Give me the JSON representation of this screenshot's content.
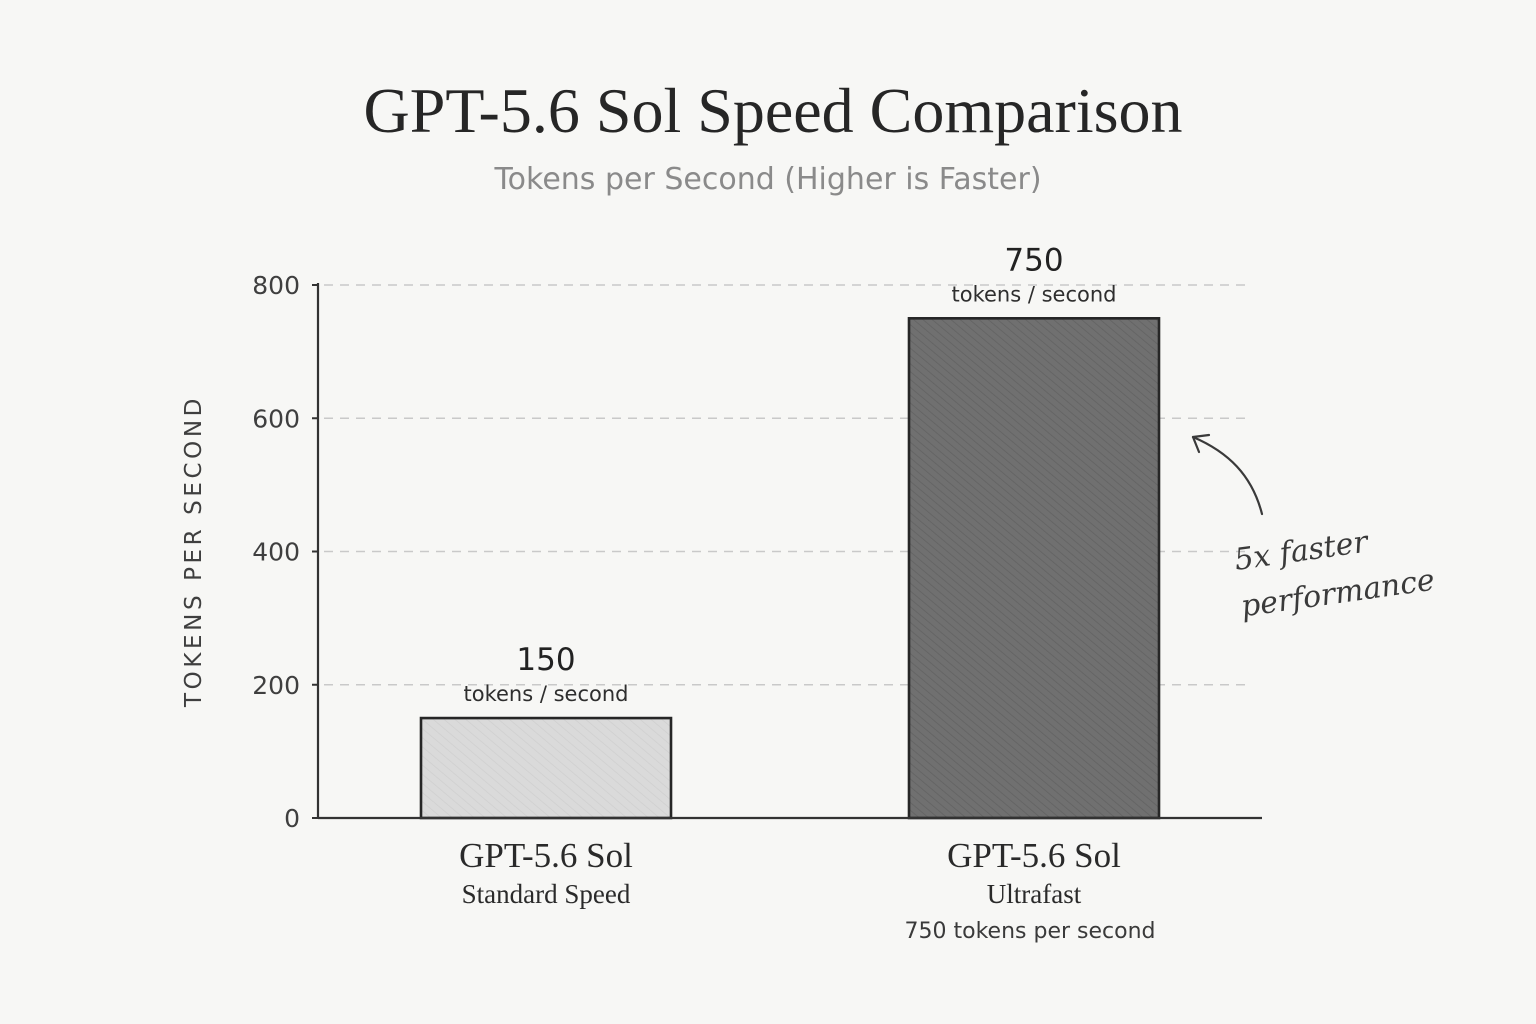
{
  "chart_data": {
    "type": "bar",
    "title": "GPT-5.6 Sol Speed Comparison",
    "subtitle": "Tokens per Second (Higher is Faster)",
    "ylabel": "TOKENS PER SECOND",
    "xlabel": "",
    "ylim": [
      0,
      800
    ],
    "yticks": [
      0,
      200,
      400,
      600,
      800
    ],
    "grid": true,
    "categories": [
      {
        "name": "GPT-5.6 Sol",
        "subtitle": "Standard Speed",
        "note": "",
        "value": 150,
        "value_label": "150",
        "unit_label": "tokens / second",
        "fill": "#dadada"
      },
      {
        "name": "GPT-5.6 Sol",
        "subtitle": "Ultrafast",
        "note": "750 tokens per second",
        "value": 750,
        "value_label": "750",
        "unit_label": "tokens / second",
        "fill": "#707070"
      }
    ],
    "annotation": {
      "lines": [
        "5x faster",
        "performance"
      ]
    }
  }
}
